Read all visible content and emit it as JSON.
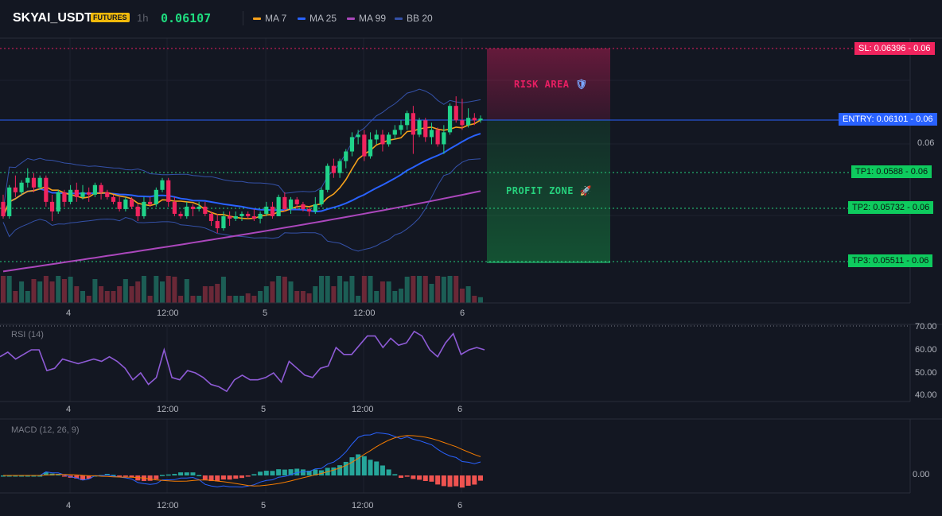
{
  "header": {
    "symbol": "SKYAI_USDT",
    "badge": "FUTURES",
    "timeframe": "1h",
    "price": "0.06107",
    "legend": [
      {
        "label": "MA 7",
        "color": "#f7a21b"
      },
      {
        "label": "MA 25",
        "color": "#2962ff"
      },
      {
        "label": "MA 99",
        "color": "#ab47bc"
      },
      {
        "label": "BB 20",
        "color": "#3451a8"
      }
    ]
  },
  "colors": {
    "up": "#20d38a",
    "down": "#f0245e",
    "background": "#131722",
    "risk": "#e91e63",
    "profit": "#16a34a",
    "rsi": "#8e5bd6",
    "macd": "#2962ff",
    "signal": "#f57c00"
  },
  "levels": {
    "sl": {
      "label": "SL: 0.06396",
      "right": "0.06",
      "value": 0.06396
    },
    "entry": {
      "label": "ENTRY: 0.06101",
      "right": "0.06",
      "value": 0.06101
    },
    "tp1": {
      "label": "TP1: 0.0588",
      "right": "0.06",
      "value": 0.0588
    },
    "tp2": {
      "label": "TP2: 0.05732",
      "right": "0.06",
      "value": 0.05732
    },
    "tp3": {
      "label": "TP3: 0.05511",
      "right": "0.06",
      "value": 0.05511
    }
  },
  "zones": {
    "risk": "RISK AREA",
    "risk_icon": "shield-icon",
    "profit": "PROFIT ZONE",
    "profit_icon": "rocket-icon"
  },
  "price_axis": {
    "mid_label": "0.06"
  },
  "time_axis": [
    "4",
    "12:00",
    "5",
    "12:00",
    "6"
  ],
  "rsi": {
    "title": "RSI (14)",
    "ticks": [
      "70.00",
      "60.00",
      "50.00",
      "40.00"
    ],
    "values": [
      57,
      59,
      56,
      58,
      60,
      60,
      51,
      52,
      56,
      55,
      54,
      55,
      56,
      55,
      57,
      55,
      52,
      47,
      50,
      45,
      48,
      60,
      48,
      47,
      51,
      50,
      48,
      45,
      44,
      42,
      47,
      49,
      47,
      47,
      48,
      50,
      46,
      55,
      52,
      49,
      48,
      52,
      53,
      61,
      58,
      58,
      62,
      66,
      66,
      61,
      65,
      62,
      63,
      68,
      66,
      60,
      57,
      63,
      67,
      58,
      60,
      61,
      60
    ]
  },
  "macd": {
    "title": "MACD (12, 26, 9)",
    "ticks": [
      "0.00"
    ]
  },
  "candles": [
    [
      0.0576,
      0.0579,
      0.0569,
      0.057
    ],
    [
      0.057,
      0.0583,
      0.0569,
      0.0582
    ],
    [
      0.0582,
      0.0587,
      0.0578,
      0.058
    ],
    [
      0.058,
      0.0585,
      0.0579,
      0.0584
    ],
    [
      0.0584,
      0.059,
      0.0582,
      0.0586
    ],
    [
      0.0586,
      0.0588,
      0.058,
      0.0582
    ],
    [
      0.0582,
      0.0587,
      0.0581,
      0.0586
    ],
    [
      0.0586,
      0.0587,
      0.0574,
      0.0576
    ],
    [
      0.0576,
      0.0579,
      0.0568,
      0.0572
    ],
    [
      0.0572,
      0.0581,
      0.0571,
      0.058
    ],
    [
      0.058,
      0.0581,
      0.0574,
      0.0576
    ],
    [
      0.0576,
      0.0583,
      0.0575,
      0.0581
    ],
    [
      0.0581,
      0.0584,
      0.0576,
      0.0578
    ],
    [
      0.0578,
      0.0583,
      0.0577,
      0.058
    ],
    [
      0.058,
      0.0582,
      0.0576,
      0.0579
    ],
    [
      0.0579,
      0.0584,
      0.0578,
      0.0583
    ],
    [
      0.0583,
      0.0584,
      0.0577,
      0.058
    ],
    [
      0.058,
      0.0581,
      0.0577,
      0.0578
    ],
    [
      0.0578,
      0.0579,
      0.0575,
      0.0576
    ],
    [
      0.0576,
      0.0578,
      0.0572,
      0.0573
    ],
    [
      0.0573,
      0.0578,
      0.0572,
      0.0577
    ],
    [
      0.0577,
      0.0578,
      0.0573,
      0.0574
    ],
    [
      0.0574,
      0.0575,
      0.0568,
      0.057
    ],
    [
      0.057,
      0.0578,
      0.0569,
      0.0576
    ],
    [
      0.0576,
      0.0578,
      0.0574,
      0.0575
    ],
    [
      0.0575,
      0.0582,
      0.0574,
      0.0581
    ],
    [
      0.0581,
      0.0586,
      0.058,
      0.0585
    ],
    [
      0.0585,
      0.0586,
      0.0574,
      0.0576
    ],
    [
      0.0576,
      0.0578,
      0.057,
      0.0571
    ],
    [
      0.0571,
      0.0572,
      0.0569,
      0.057
    ],
    [
      0.057,
      0.0576,
      0.0569,
      0.0574
    ],
    [
      0.0574,
      0.0575,
      0.057,
      0.0573
    ],
    [
      0.0573,
      0.0576,
      0.0572,
      0.0574
    ],
    [
      0.0574,
      0.0576,
      0.057,
      0.0571
    ],
    [
      0.0571,
      0.0572,
      0.0566,
      0.0568
    ],
    [
      0.0568,
      0.0571,
      0.0563,
      0.0565
    ],
    [
      0.0565,
      0.0572,
      0.0564,
      0.057
    ],
    [
      0.057,
      0.0572,
      0.0566,
      0.0569
    ],
    [
      0.0569,
      0.0572,
      0.0568,
      0.057
    ],
    [
      0.057,
      0.0572,
      0.0568,
      0.0571
    ],
    [
      0.0571,
      0.0572,
      0.0569,
      0.057
    ],
    [
      0.057,
      0.0573,
      0.0568,
      0.0569
    ],
    [
      0.0569,
      0.0572,
      0.0567,
      0.0571
    ],
    [
      0.0571,
      0.0576,
      0.057,
      0.0574
    ],
    [
      0.0574,
      0.0576,
      0.0569,
      0.057
    ],
    [
      0.057,
      0.0579,
      0.057,
      0.0578
    ],
    [
      0.0578,
      0.058,
      0.0572,
      0.0573
    ],
    [
      0.0573,
      0.0578,
      0.0571,
      0.0577
    ],
    [
      0.0577,
      0.0578,
      0.0573,
      0.0575
    ],
    [
      0.0575,
      0.0576,
      0.0572,
      0.0573
    ],
    [
      0.0573,
      0.0574,
      0.057,
      0.0572
    ],
    [
      0.0572,
      0.0578,
      0.0571,
      0.0575
    ],
    [
      0.0575,
      0.0582,
      0.0574,
      0.0581
    ],
    [
      0.0581,
      0.0592,
      0.058,
      0.0591
    ],
    [
      0.0591,
      0.0594,
      0.0586,
      0.0588
    ],
    [
      0.0588,
      0.0594,
      0.0586,
      0.0593
    ],
    [
      0.0593,
      0.0598,
      0.059,
      0.0597
    ],
    [
      0.0597,
      0.0605,
      0.0595,
      0.0603
    ],
    [
      0.0603,
      0.0606,
      0.06,
      0.0604
    ],
    [
      0.0604,
      0.0606,
      0.0593,
      0.0595
    ],
    [
      0.0595,
      0.0605,
      0.0594,
      0.0602
    ],
    [
      0.0602,
      0.0606,
      0.06,
      0.0604
    ],
    [
      0.0604,
      0.0606,
      0.0597,
      0.06
    ],
    [
      0.06,
      0.0605,
      0.0599,
      0.0604
    ],
    [
      0.0604,
      0.0608,
      0.0602,
      0.0606
    ],
    [
      0.0606,
      0.061,
      0.0604,
      0.0608
    ],
    [
      0.0608,
      0.0614,
      0.0606,
      0.0613
    ],
    [
      0.0613,
      0.0616,
      0.0596,
      0.0604
    ],
    [
      0.0604,
      0.0611,
      0.0603,
      0.061
    ],
    [
      0.061,
      0.0611,
      0.0601,
      0.0603
    ],
    [
      0.0603,
      0.0609,
      0.06,
      0.0606
    ],
    [
      0.0606,
      0.0607,
      0.0599,
      0.06
    ],
    [
      0.06,
      0.0608,
      0.0596,
      0.0605
    ],
    [
      0.0605,
      0.0617,
      0.0604,
      0.0616
    ],
    [
      0.0616,
      0.062,
      0.0609,
      0.061
    ],
    [
      0.061,
      0.0619,
      0.0606,
      0.0608
    ],
    [
      0.0608,
      0.0615,
      0.0607,
      0.0611
    ],
    [
      0.0611,
      0.0613,
      0.0608,
      0.061
    ],
    [
      0.061,
      0.0612,
      0.0609,
      0.06107
    ]
  ]
}
